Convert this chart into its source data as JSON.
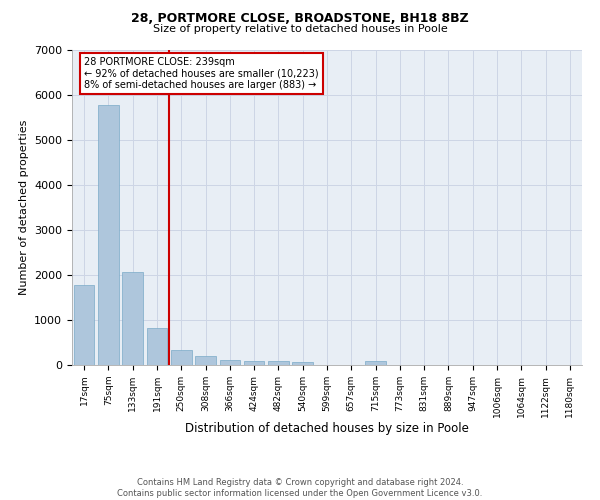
{
  "title": "28, PORTMORE CLOSE, BROADSTONE, BH18 8BZ",
  "subtitle": "Size of property relative to detached houses in Poole",
  "xlabel": "Distribution of detached houses by size in Poole",
  "ylabel": "Number of detached properties",
  "categories": [
    "17sqm",
    "75sqm",
    "133sqm",
    "191sqm",
    "250sqm",
    "308sqm",
    "366sqm",
    "424sqm",
    "482sqm",
    "540sqm",
    "599sqm",
    "657sqm",
    "715sqm",
    "773sqm",
    "831sqm",
    "889sqm",
    "947sqm",
    "1006sqm",
    "1064sqm",
    "1122sqm",
    "1180sqm"
  ],
  "values": [
    1780,
    5780,
    2060,
    830,
    340,
    190,
    120,
    100,
    90,
    70,
    0,
    0,
    80,
    0,
    0,
    0,
    0,
    0,
    0,
    0,
    0
  ],
  "bar_color": "#aec6dc",
  "bar_edge_color": "#7aaac8",
  "annotation_title": "28 PORTMORE CLOSE: 239sqm",
  "annotation_line1": "← 92% of detached houses are smaller (10,223)",
  "annotation_line2": "8% of semi-detached houses are larger (883) →",
  "annotation_box_color": "#cc0000",
  "vline_color": "#cc0000",
  "vline_x": 3.5,
  "ylim": [
    0,
    7000
  ],
  "yticks": [
    0,
    1000,
    2000,
    3000,
    4000,
    5000,
    6000,
    7000
  ],
  "grid_color": "#cdd5e5",
  "background_color": "#e8eef5",
  "footer_line1": "Contains HM Land Registry data © Crown copyright and database right 2024.",
  "footer_line2": "Contains public sector information licensed under the Open Government Licence v3.0."
}
